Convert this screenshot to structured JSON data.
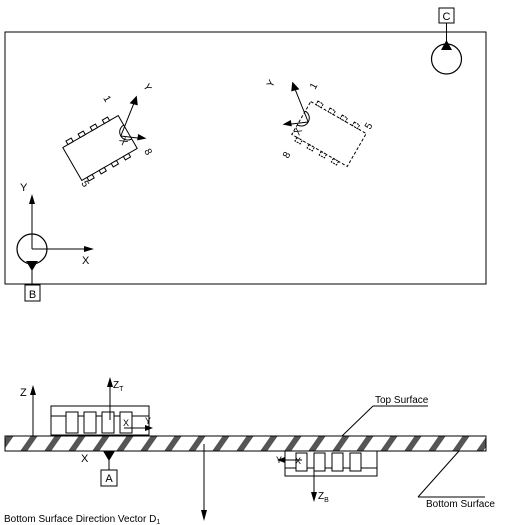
{
  "datums": {
    "a": "A",
    "b": "B",
    "c": "C"
  },
  "axes": {
    "x": "X",
    "y": "Y",
    "z": "Z",
    "zt": "Z",
    "zt_sub": "T",
    "zb": "Z",
    "zb_sub": "B"
  },
  "chip_pins": {
    "first": "1",
    "fifth": "5",
    "eighth": "8"
  },
  "labels": {
    "top_surface": "Top Surface",
    "bottom_surface": "Bottom Surface",
    "direction_vector": "Bottom Surface Direction Vector",
    "direction_vector_symbol": "D",
    "direction_vector_sub": "1"
  }
}
